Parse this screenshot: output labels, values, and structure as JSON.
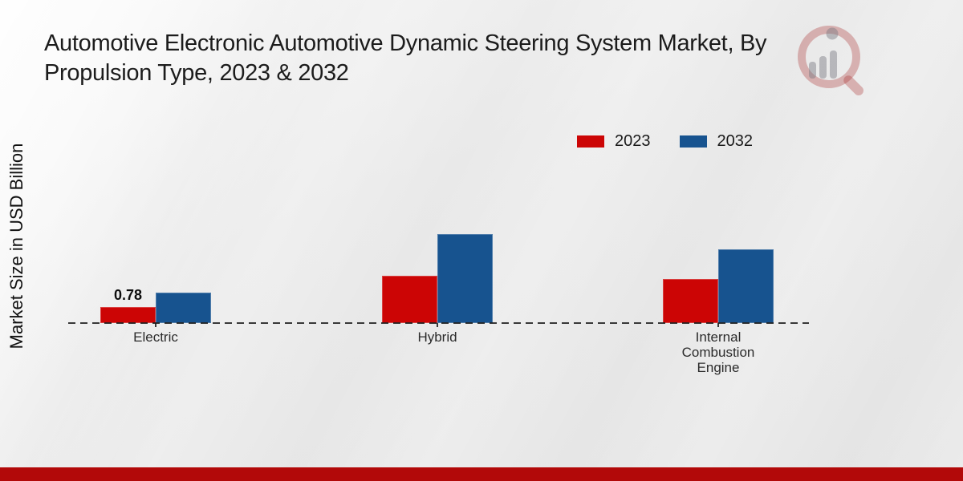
{
  "title": {
    "line1": "Automotive Electronic Automotive Dynamic Steering System Market, By",
    "line2": "Propulsion Type, 2023 & 2032"
  },
  "y_axis_label": "Market Size in USD Billion",
  "legend": {
    "items": [
      {
        "label": "2023",
        "color": "#cc0505"
      },
      {
        "label": "2032",
        "color": "#17538f"
      }
    ]
  },
  "chart_data": {
    "type": "bar",
    "title": "Automotive Electronic Automotive Dynamic Steering System Market, By Propulsion Type, 2023 & 2032",
    "ylabel": "Market Size in USD Billion",
    "categories": [
      "Electric",
      "Hybrid",
      "Internal Combustion Engine"
    ],
    "series": [
      {
        "name": "2023",
        "color": "#cc0505",
        "values": [
          0.78,
          2.3,
          2.15
        ]
      },
      {
        "name": "2032",
        "color": "#17538f",
        "values": [
          1.48,
          4.33,
          3.6
        ]
      }
    ],
    "data_labels": [
      {
        "series": "2023",
        "category": "Electric",
        "text": "0.78"
      }
    ],
    "ylim": [
      0,
      4.5
    ],
    "grid": false,
    "baseline_style": "dashed",
    "legend_position": "top-right"
  },
  "watermark": {
    "name": "magnifier-bar-chart-logo"
  },
  "footer": {
    "color": "#b20909"
  }
}
